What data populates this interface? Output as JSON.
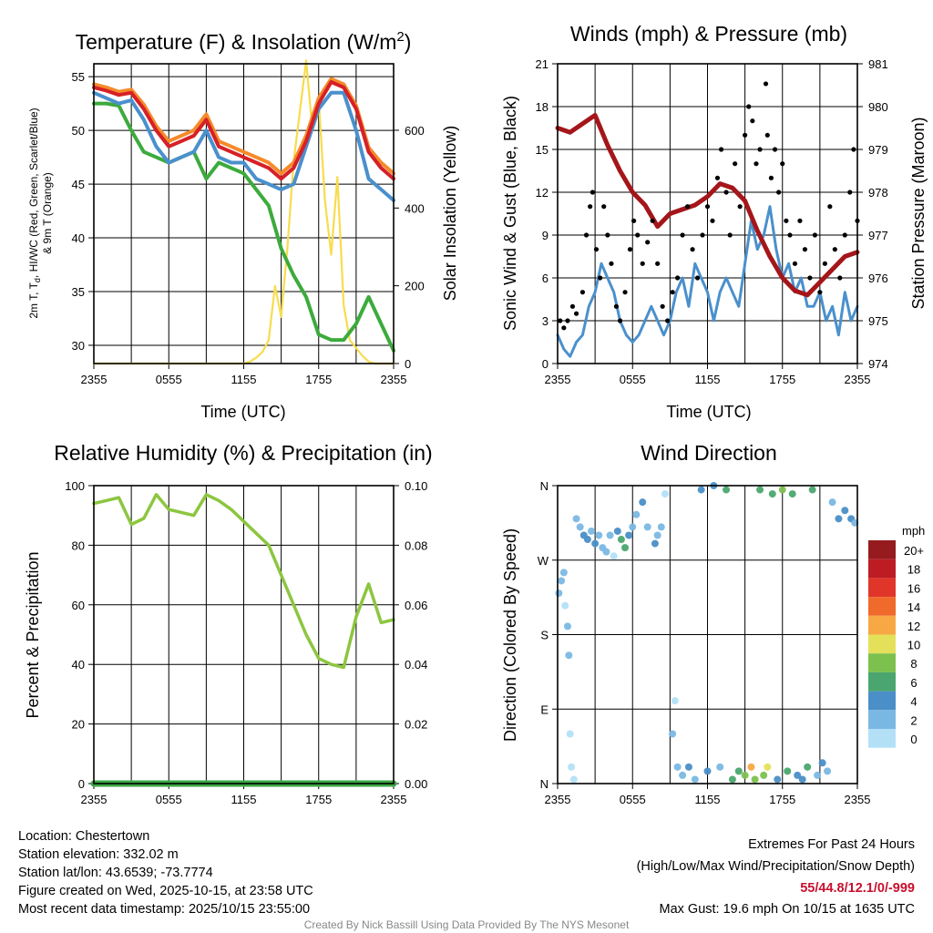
{
  "footer": {
    "location": "Location: Chestertown",
    "elevation": "Station elevation: 332.02 m",
    "latlon": "Station lat/lon: 43.6539; -73.7774",
    "created": "Figure created on Wed, 2025-10-15, at 23:58 UTC",
    "recent": "Most recent data timestamp: 2025/10/15 23:55:00",
    "extremes_title": "Extremes For Past 24 Hours",
    "extremes_legend": "(High/Low/Max Wind/Precipitation/Snow Depth)",
    "extremes_values": "55/44.8/12.1/0/-999",
    "max_gust": "Max Gust: 19.6 mph On 10/15 at 1635 UTC",
    "credit": "Created By Nick Bassill Using Data Provided By The NYS Mesonet",
    "extremes_color": "#c8102e"
  },
  "chart_data": [
    {
      "id": "temp",
      "type": "line",
      "title": {
        "main": "Temperature (F) & Insolation (W/m",
        "sup": "2",
        "end": ")"
      },
      "xlabel": "Time (UTC)",
      "ylabel_left": {
        "l1a": "2m T, T",
        "l1sub": "d",
        "l1b": ", HI/WC (Red, Green, Scarlet/Blue)",
        "l2": "& 9m T (Orange)"
      },
      "ylabel_right": "Solar Insolation (Yellow)",
      "x_ticks": {
        "hours": [
          0,
          6,
          12,
          18,
          24
        ],
        "labels": [
          "2355",
          "0555",
          "1155",
          "1755",
          "2355"
        ]
      },
      "grid_every_hours": 3,
      "ylim_left": [
        28.3,
        56.2
      ],
      "ticks_left": [
        30,
        35,
        40,
        45,
        50,
        55
      ],
      "ylim_right": [
        0,
        771
      ],
      "ticks_right": [
        0,
        200,
        400,
        600
      ],
      "series": [
        {
          "name": "Solar Insolation",
          "color": "#f7dc4f",
          "axis": "right",
          "step": 0.5,
          "width": 2.2,
          "values": [
            0,
            0,
            0,
            0,
            0,
            0,
            0,
            0,
            0,
            0,
            0,
            0,
            0,
            0,
            0,
            0,
            0,
            0,
            0,
            0,
            0,
            0,
            0,
            0,
            0,
            5,
            15,
            30,
            60,
            200,
            120,
            300,
            520,
            650,
            780,
            600,
            680,
            420,
            280,
            480,
            150,
            60,
            40,
            20,
            5,
            0,
            0,
            0,
            0
          ]
        },
        {
          "name": "Dewpoint (Td)",
          "color": "#3cab3c",
          "axis": "left",
          "step": 1,
          "width": 4,
          "values": [
            52.5,
            52.5,
            52.3,
            50,
            48,
            47.5,
            47,
            47.5,
            48,
            45.5,
            47,
            46.5,
            46,
            44.5,
            43,
            39,
            36.5,
            34.5,
            31,
            30.5,
            30.5,
            32,
            34.5,
            32,
            29.5
          ]
        },
        {
          "name": "HI/WC",
          "color": "#4a90cd",
          "axis": "left",
          "step": 1,
          "width": 4,
          "values": [
            53.5,
            53,
            52.5,
            52.8,
            51,
            48.5,
            47,
            47.5,
            48,
            50,
            47.5,
            47,
            47,
            45.5,
            45,
            44.5,
            45,
            48.5,
            52,
            53.5,
            53.5,
            50,
            45.5,
            44.5,
            43.5
          ]
        },
        {
          "name": "9m T",
          "color": "#f58a2a",
          "axis": "left",
          "step": 1,
          "width": 4,
          "values": [
            54.3,
            54,
            53.6,
            53.8,
            52.4,
            50.4,
            49,
            49.5,
            50,
            51.5,
            49,
            48.5,
            48,
            47.5,
            47,
            46,
            47,
            49.5,
            53,
            54.8,
            54.3,
            52.3,
            48.4,
            47,
            46
          ]
        },
        {
          "name": "2m T",
          "color": "#d62027",
          "axis": "left",
          "step": 1,
          "width": 4,
          "values": [
            54,
            53.7,
            53.3,
            53.5,
            52,
            50,
            48.5,
            49,
            49.5,
            51,
            48.5,
            48,
            47.5,
            47,
            46.5,
            45.5,
            46.5,
            49,
            52.5,
            54.5,
            54,
            52,
            48,
            46.5,
            45.5
          ]
        }
      ]
    },
    {
      "id": "wind",
      "type": "line",
      "title": {
        "main": "Winds (mph) & Pressure (mb)"
      },
      "xlabel": "Time (UTC)",
      "ylabel_left": "Sonic Wind & Gust (Blue, Black)",
      "ylabel_right": "Station Pressure (Maroon)",
      "x_ticks": {
        "hours": [
          0,
          6,
          12,
          18,
          24
        ],
        "labels": [
          "2355",
          "0555",
          "1155",
          "1755",
          "2355"
        ]
      },
      "grid_every_hours": 3,
      "ylim_left": [
        0,
        21
      ],
      "ticks_left": [
        0,
        3,
        6,
        9,
        12,
        15,
        18,
        21
      ],
      "ylim_right": [
        974,
        981
      ],
      "ticks_right": [
        974,
        975,
        976,
        977,
        978,
        979,
        980,
        981
      ],
      "series": [
        {
          "name": "Sonic Wind",
          "color": "#4a90cd",
          "axis": "left",
          "step": 0.5,
          "width": 3,
          "values": [
            2,
            1,
            0.5,
            1.5,
            2,
            4,
            5,
            7,
            6,
            5,
            3,
            2,
            1.5,
            2,
            3,
            4,
            3,
            2,
            3,
            5,
            6,
            4,
            7,
            6,
            5,
            3,
            5,
            6,
            5,
            4,
            7,
            10,
            8,
            9,
            11,
            8,
            6,
            7,
            5,
            6,
            4,
            4,
            5,
            3,
            4,
            2,
            5,
            3,
            4
          ]
        },
        {
          "name": "Station Pressure",
          "color": "#a4161a",
          "axis": "right",
          "step": 1,
          "width": 5,
          "values": [
            979.5,
            979.4,
            979.6,
            979.8,
            979.1,
            978.5,
            978,
            977.7,
            977.2,
            977.5,
            977.6,
            977.7,
            977.9,
            978.2,
            978.1,
            977.8,
            977.1,
            976.5,
            976,
            975.7,
            975.6,
            975.9,
            976.2,
            976.5,
            976.6
          ]
        }
      ],
      "gusts": {
        "name": "Gust",
        "color": "#000000",
        "points": [
          [
            0.2,
            3
          ],
          [
            0.5,
            2.5
          ],
          [
            0.8,
            3
          ],
          [
            1.2,
            4
          ],
          [
            1.5,
            3.5
          ],
          [
            2,
            5
          ],
          [
            2.3,
            9
          ],
          [
            2.6,
            11
          ],
          [
            2.8,
            12
          ],
          [
            3.1,
            8
          ],
          [
            3.4,
            6
          ],
          [
            3.7,
            11
          ],
          [
            4,
            9
          ],
          [
            4.3,
            7
          ],
          [
            4.7,
            4
          ],
          [
            5,
            3
          ],
          [
            5.4,
            5
          ],
          [
            5.8,
            8
          ],
          [
            6.1,
            10
          ],
          [
            6.4,
            9
          ],
          [
            6.8,
            7
          ],
          [
            7.2,
            8.5
          ],
          [
            7.6,
            10
          ],
          [
            8,
            7
          ],
          [
            8.4,
            4
          ],
          [
            8.8,
            3
          ],
          [
            9.2,
            5
          ],
          [
            9.6,
            6
          ],
          [
            10,
            9
          ],
          [
            10.4,
            11
          ],
          [
            10.8,
            8
          ],
          [
            11.2,
            6
          ],
          [
            11.6,
            9
          ],
          [
            12,
            11
          ],
          [
            12.4,
            10
          ],
          [
            12.8,
            13
          ],
          [
            13.1,
            15
          ],
          [
            13.5,
            12
          ],
          [
            13.8,
            9
          ],
          [
            14.2,
            14
          ],
          [
            14.6,
            11
          ],
          [
            15,
            16
          ],
          [
            15.3,
            18
          ],
          [
            15.6,
            17
          ],
          [
            15.9,
            14
          ],
          [
            16.2,
            15
          ],
          [
            16.67,
            19.6
          ],
          [
            16.8,
            16
          ],
          [
            17.1,
            13
          ],
          [
            17.4,
            15
          ],
          [
            17.7,
            12
          ],
          [
            18,
            14
          ],
          [
            18.3,
            10
          ],
          [
            18.6,
            9
          ],
          [
            19,
            7
          ],
          [
            19.4,
            10
          ],
          [
            19.8,
            8
          ],
          [
            20.2,
            6
          ],
          [
            20.6,
            9
          ],
          [
            21,
            5
          ],
          [
            21.4,
            7
          ],
          [
            21.8,
            11
          ],
          [
            22.2,
            8
          ],
          [
            22.6,
            6
          ],
          [
            23,
            9
          ],
          [
            23.4,
            12
          ],
          [
            23.7,
            15
          ],
          [
            24,
            10
          ]
        ]
      }
    },
    {
      "id": "rh",
      "type": "line",
      "title": {
        "main": "Relative Humidity (%) & Precipitation (in)"
      },
      "xlabel": "",
      "ylabel_left": "Percent & Precipitation",
      "x_ticks": {
        "hours": [
          0,
          6,
          12,
          18,
          24
        ],
        "labels": [
          "2355",
          "0555",
          "1155",
          "1755",
          "2355"
        ]
      },
      "grid_every_hours": 3,
      "ylim_left": [
        0,
        100
      ],
      "ticks_left": [
        0,
        20,
        40,
        60,
        80,
        100
      ],
      "ylim_right": [
        0,
        0.1
      ],
      "ticks_right": [
        "0.00",
        "0.02",
        "0.04",
        "0.06",
        "0.08",
        "0.10"
      ],
      "series": [
        {
          "name": "Precipitation",
          "color": "#3aa645",
          "axis": "right",
          "step": 1,
          "width": 7,
          "values": [
            0,
            0,
            0,
            0,
            0,
            0,
            0,
            0,
            0,
            0,
            0,
            0,
            0,
            0,
            0,
            0,
            0,
            0,
            0,
            0,
            0,
            0,
            0,
            0,
            0
          ]
        },
        {
          "name": "Relative Humidity",
          "color": "#8cc63f",
          "axis": "left",
          "step": 1,
          "width": 3.5,
          "values": [
            94,
            95,
            96,
            87,
            89,
            97,
            92,
            91,
            90,
            97,
            95,
            92,
            88,
            84,
            80,
            70,
            60,
            50,
            42,
            40,
            39,
            56,
            67,
            54,
            55
          ]
        }
      ]
    },
    {
      "id": "dir",
      "type": "scatter",
      "title": {
        "main": "Wind Direction"
      },
      "ylabel_left": "Direction (Colored By Speed)",
      "x_ticks": {
        "hours": [
          0,
          6,
          12,
          18,
          24
        ],
        "labels": [
          "2355",
          "0555",
          "1155",
          "1755",
          "2355"
        ]
      },
      "grid_every_hours": 3,
      "ylim_left": [
        0,
        360
      ],
      "ticks_left": [
        0,
        90,
        180,
        270,
        360
      ],
      "tick_labels_left": [
        "N",
        "E",
        "S",
        "W",
        "N"
      ],
      "points": [
        [
          0.1,
          230,
          2
        ],
        [
          0.3,
          245,
          3
        ],
        [
          0.5,
          255,
          2
        ],
        [
          0.6,
          215,
          1
        ],
        [
          0.8,
          190,
          2
        ],
        [
          0.9,
          155,
          2
        ],
        [
          1.0,
          60,
          1
        ],
        [
          1.1,
          20,
          1
        ],
        [
          1.3,
          5,
          0
        ],
        [
          1.5,
          320,
          2
        ],
        [
          1.8,
          310,
          3
        ],
        [
          2.1,
          300,
          4
        ],
        [
          2.4,
          295,
          5
        ],
        [
          2.7,
          305,
          3
        ],
        [
          3.0,
          290,
          4
        ],
        [
          3.3,
          300,
          2
        ],
        [
          3.6,
          285,
          3
        ],
        [
          3.9,
          280,
          2
        ],
        [
          4.2,
          300,
          3
        ],
        [
          4.5,
          275,
          1
        ],
        [
          4.8,
          305,
          4
        ],
        [
          5.1,
          295,
          6
        ],
        [
          5.4,
          285,
          7
        ],
        [
          5.7,
          300,
          4
        ],
        [
          6.0,
          310,
          3
        ],
        [
          6.3,
          325,
          2
        ],
        [
          6.8,
          340,
          4
        ],
        [
          7.2,
          310,
          3
        ],
        [
          7.8,
          290,
          4
        ],
        [
          8.0,
          300,
          2
        ],
        [
          8.3,
          310,
          3
        ],
        [
          8.6,
          350,
          1
        ],
        [
          9.2,
          60,
          2
        ],
        [
          9.4,
          100,
          1
        ],
        [
          9.6,
          20,
          2
        ],
        [
          10.0,
          10,
          3
        ],
        [
          10.5,
          20,
          4
        ],
        [
          11.0,
          5,
          3
        ],
        [
          11.5,
          355,
          5
        ],
        [
          12.0,
          15,
          4
        ],
        [
          12.5,
          360,
          5
        ],
        [
          13.0,
          20,
          3
        ],
        [
          13.5,
          355,
          6
        ],
        [
          14.0,
          5,
          6
        ],
        [
          14.5,
          15,
          7
        ],
        [
          15.0,
          10,
          8
        ],
        [
          15.5,
          20,
          12
        ],
        [
          15.8,
          5,
          9
        ],
        [
          16.2,
          355,
          7
        ],
        [
          16.5,
          10,
          8
        ],
        [
          16.8,
          20,
          10
        ],
        [
          17.2,
          350,
          6
        ],
        [
          17.6,
          5,
          5
        ],
        [
          18.0,
          355,
          8
        ],
        [
          18.4,
          15,
          7
        ],
        [
          18.8,
          350,
          6
        ],
        [
          19.2,
          10,
          5
        ],
        [
          19.6,
          5,
          4
        ],
        [
          20.0,
          20,
          6
        ],
        [
          20.4,
          355,
          7
        ],
        [
          20.8,
          10,
          3
        ],
        [
          21.2,
          25,
          4
        ],
        [
          21.6,
          15,
          3
        ],
        [
          22.0,
          340,
          2
        ],
        [
          22.5,
          320,
          4
        ],
        [
          23.0,
          330,
          5
        ],
        [
          23.5,
          320,
          4
        ],
        [
          23.8,
          315,
          3
        ]
      ],
      "colorbar": {
        "unit": "mph",
        "labels": [
          "20+",
          "18",
          "16",
          "14",
          "12",
          "10",
          "8",
          "6",
          "4",
          "2",
          "0"
        ],
        "colors": [
          "#951b1e",
          "#bd1c24",
          "#e0362a",
          "#f06a2c",
          "#f7a845",
          "#e5e05a",
          "#7cc04e",
          "#4aa66e",
          "#4a8fc7",
          "#7ab8e4",
          "#b3e0f7"
        ]
      }
    }
  ]
}
